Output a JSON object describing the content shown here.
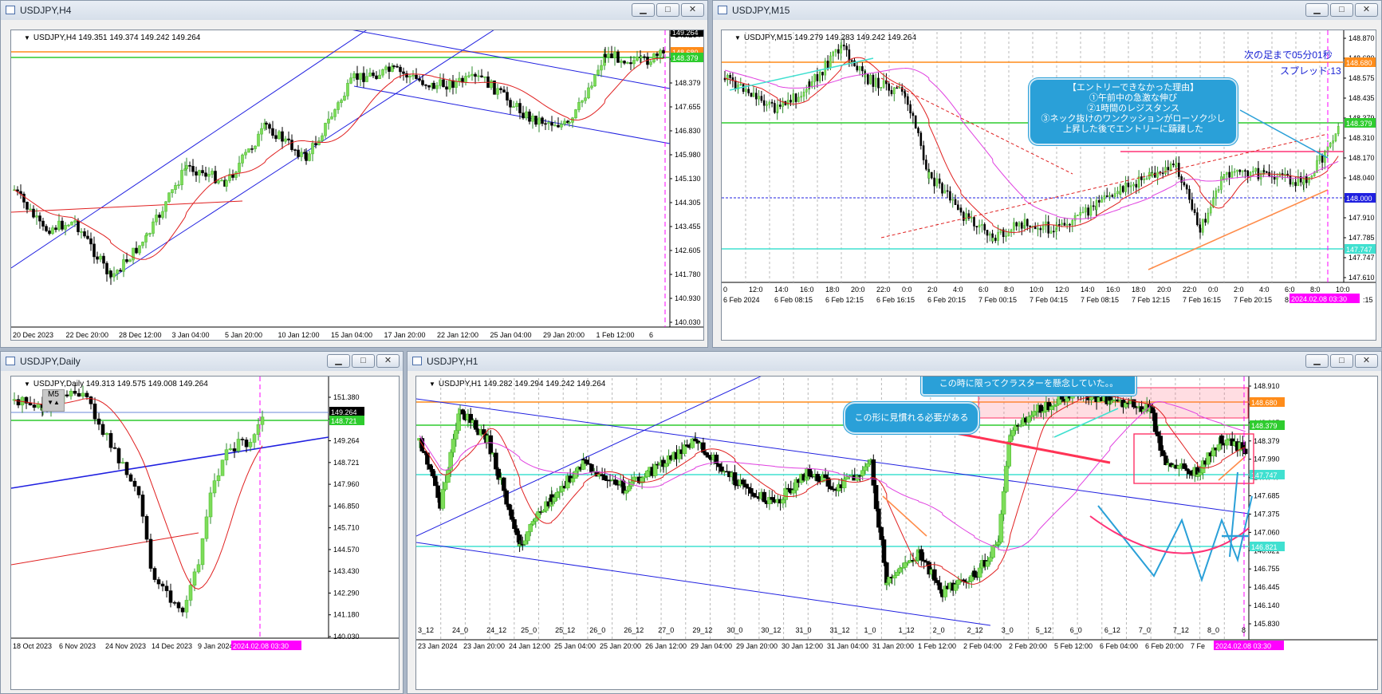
{
  "windows": {
    "h4": {
      "title": "USDJPY,H4",
      "header": "USDJPY,H4  149.351 149.374 149.242 149.264",
      "price_labels": [
        "149.264",
        "148.680",
        "148.379",
        "147.655",
        "146.830",
        "145.980",
        "145.130",
        "144.305",
        "143.455",
        "142.605",
        "141.780",
        "140.930",
        "140.030"
      ],
      "time_labels": [
        "20 Dec 2023",
        "22 Dec 20:00",
        "28 Dec 12:00",
        "3 Jan 04:00",
        "5 Jan 20:00",
        "10 Jan 12:00",
        "15 Jan 04:00",
        "17 Jan 20:00",
        "22 Jan 12:00",
        "25 Jan 04:00",
        "29 Jan 20:00",
        "1 Feb 12:00",
        "6"
      ]
    },
    "m15": {
      "title": "USDJPY,M15",
      "header": "USDJPY,M15  149.279 149.283 149.242 149.264",
      "price_labels": [
        "148.870",
        "148.680",
        "148.575",
        "148.435",
        "148.379",
        "148.310",
        "148.170",
        "148.040",
        "148.000",
        "147.910",
        "147.785",
        "147.747",
        "147.610"
      ],
      "time_labels_top": [
        "0",
        "12:0",
        "14:0",
        "16:0",
        "18:0",
        "20:0",
        "22:0",
        "0:0",
        "2:0",
        "4:0",
        "6:0",
        "8:0",
        "10:0",
        "12:0",
        "14:0",
        "16:0",
        "18:0",
        "20:0",
        "22:0",
        "0:0",
        "2:0",
        "4:0",
        "6:0",
        "8:0",
        "10:0"
      ],
      "time_labels": [
        "6 Feb 2024",
        "6 Feb 08:15",
        "6 Feb 12:15",
        "6 Feb 16:15",
        "6 Feb 20:15",
        "7 Feb 00:15",
        "7 Feb 04:15",
        "7 Feb 08:15",
        "7 Feb 12:15",
        "7 Feb 16:15",
        "7 Feb 20:15",
        "8",
        "2024.02.08 03:30",
        ":15"
      ],
      "next_bar": "次の足まで05分01秒",
      "spread": "スプレッド:13",
      "callout_lines": [
        "【エントリーできなかった理由】",
        "①午前中の急激な伸び",
        "②1時間のレジスタンス",
        "③ネック抜けのワンクッションがローソク少し",
        "上昇した後でエントリーに躊躇した"
      ]
    },
    "daily": {
      "title": "USDJPY,Daily",
      "header": "USDJPY,Daily  149.313 149.575 149.008 149.264",
      "m5": "M5",
      "price_labels": [
        "151.380",
        "150.240",
        "149.264",
        "148.721",
        "147.960",
        "146.850",
        "145.710",
        "144.570",
        "143.430",
        "142.290",
        "141.180",
        "140.030"
      ],
      "time_labels": [
        "18 Oct 2023",
        "6 Nov 2023",
        "24 Nov 2023",
        "14 Dec 2023",
        "9 Jan 2024",
        "2024.02.08 03:30"
      ]
    },
    "h1": {
      "title": "USDJPY,H1",
      "header": "USDJPY,H1  149.282 149.294 149.242 149.264",
      "price_labels": [
        "148.910",
        "148.680",
        "148.605",
        "148.379",
        "147.990",
        "147.747",
        "147.685",
        "147.375",
        "147.060",
        "146.821",
        "146.755",
        "146.445",
        "146.140",
        "145.830"
      ],
      "time_labels_top": [
        "3_12",
        "24_0",
        "24_12",
        "25_0",
        "25_12",
        "26_0",
        "26_12",
        "27_0",
        "29_12",
        "30_0",
        "30_12",
        "31_0",
        "31_12",
        "1_0",
        "1_12",
        "2_0",
        "2_12",
        "3_0",
        "5_12",
        "6_0",
        "6_12",
        "7_0",
        "7_12",
        "8_0",
        "8"
      ],
      "time_labels": [
        "23 Jan 2024",
        "23 Jan 20:00",
        "24 Jan 12:00",
        "25 Jan 04:00",
        "25 Jan 20:00",
        "26 Jan 12:00",
        "29 Jan 04:00",
        "29 Jan 20:00",
        "30 Jan 12:00",
        "31 Jan 04:00",
        "31 Jan 20:00",
        "1 Feb 12:00",
        "2 Feb 04:00",
        "2 Feb 20:00",
        "5 Feb 12:00",
        "6 Feb 04:00",
        "6 Feb 20:00",
        "7 Fe",
        "2024.02.08 03:30"
      ],
      "callout_top": "この時に限ってクラスターを懸念していた。。",
      "callout_left": "この形に見慣れる必要がある"
    }
  },
  "colors": {
    "accent_magenta": "#ff00ff",
    "orange_line": "#ff8c1a",
    "green_line": "#2ecc2e",
    "cyan_line": "#40e0d0",
    "callout_blue": "#2aa0d8"
  }
}
